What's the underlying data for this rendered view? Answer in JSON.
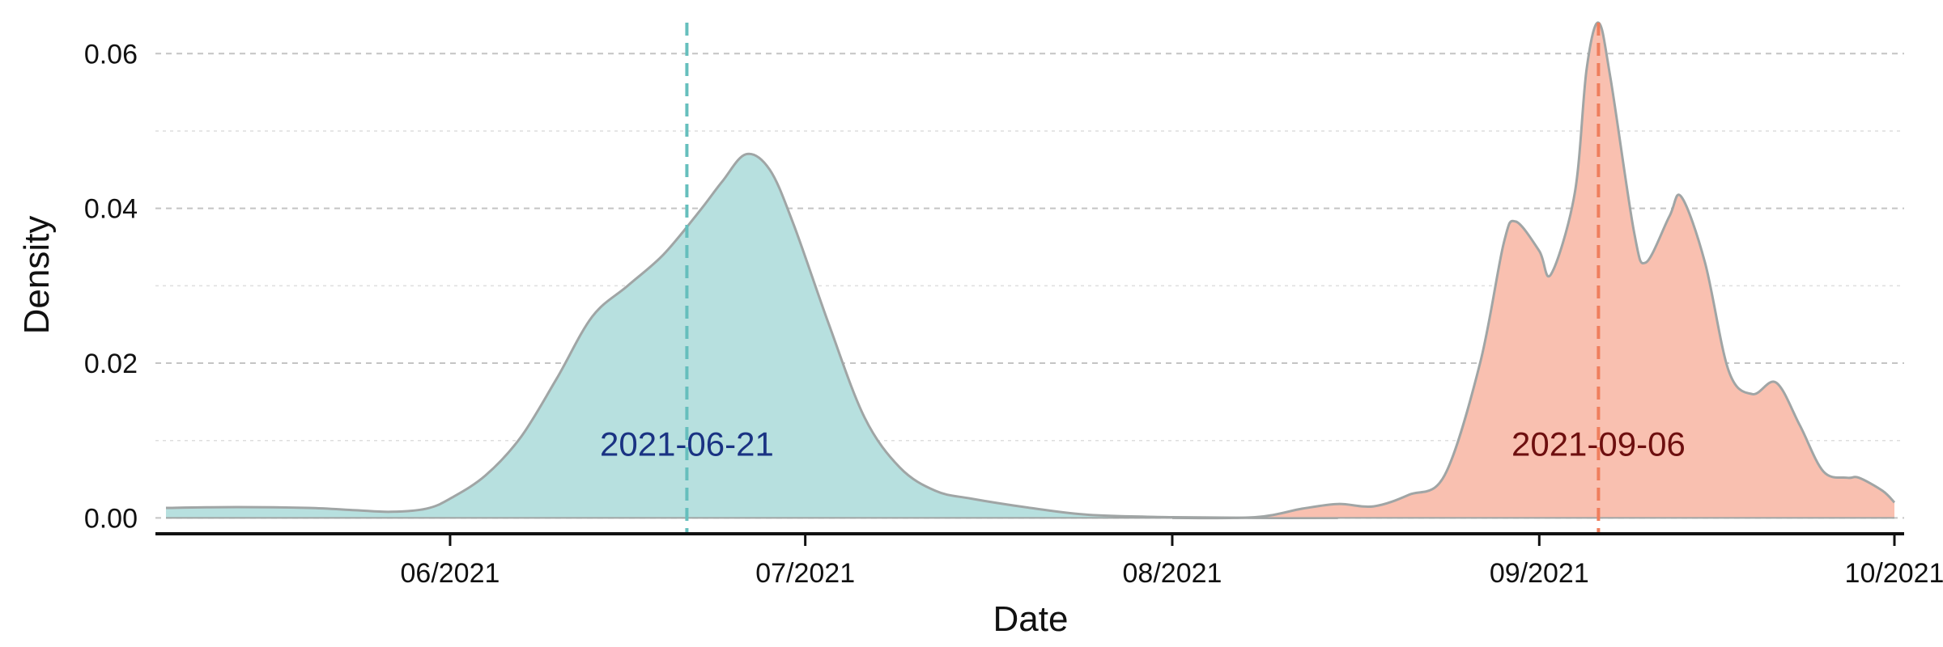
{
  "chart_data": {
    "type": "area",
    "xlabel": "Date",
    "ylabel": "Density",
    "xlim": [
      "2021-05-08",
      "2021-10-01"
    ],
    "ylim": [
      -0.001,
      0.064
    ],
    "x_ticks": [
      "2021-06-01",
      "2021-07-01",
      "2021-08-01",
      "2021-09-01",
      "2021-10-01"
    ],
    "x_tick_labels": [
      "06/2021",
      "07/2021",
      "08/2021",
      "09/2021",
      "10/2021"
    ],
    "y_ticks": [
      0.0,
      0.02,
      0.04,
      0.06
    ],
    "y_tick_labels": [
      "0.00",
      "0.02",
      "0.04",
      "0.06"
    ],
    "grid": "horizontal dashed",
    "series": [
      {
        "color": "#b7e0df",
        "points": [
          [
            "2021-05-08",
            0.0013
          ],
          [
            "2021-05-14",
            0.0014
          ],
          [
            "2021-05-20",
            0.0013
          ],
          [
            "2021-05-24",
            0.001
          ],
          [
            "2021-05-27",
            0.0008
          ],
          [
            "2021-05-30",
            0.0012
          ],
          [
            "2021-06-01",
            0.0025
          ],
          [
            "2021-06-04",
            0.0055
          ],
          [
            "2021-06-07",
            0.0105
          ],
          [
            "2021-06-10",
            0.018
          ],
          [
            "2021-06-13",
            0.026
          ],
          [
            "2021-06-16",
            0.03
          ],
          [
            "2021-06-19",
            0.034
          ],
          [
            "2021-06-22",
            0.0395
          ],
          [
            "2021-06-24",
            0.0435
          ],
          [
            "2021-06-26",
            0.047
          ],
          [
            "2021-06-28",
            0.045
          ],
          [
            "2021-06-30",
            0.038
          ],
          [
            "2021-07-03",
            0.025
          ],
          [
            "2021-07-06",
            0.013
          ],
          [
            "2021-07-09",
            0.0065
          ],
          [
            "2021-07-12",
            0.0035
          ],
          [
            "2021-07-15",
            0.0025
          ],
          [
            "2021-07-20",
            0.0013
          ],
          [
            "2021-07-25",
            0.0004
          ],
          [
            "2021-08-01",
            0.0001
          ],
          [
            "2021-08-08",
            0.0
          ],
          [
            "2021-08-15",
            0.0
          ]
        ]
      },
      {
        "color": "#f9c0b0",
        "points": [
          [
            "2021-08-01",
            0.0
          ],
          [
            "2021-08-08",
            0.0001
          ],
          [
            "2021-08-12",
            0.0012
          ],
          [
            "2021-08-15",
            0.0018
          ],
          [
            "2021-08-18",
            0.0015
          ],
          [
            "2021-08-21",
            0.003
          ],
          [
            "2021-08-24",
            0.0055
          ],
          [
            "2021-08-27",
            0.02
          ],
          [
            "2021-08-29",
            0.0355
          ],
          [
            "2021-08-30",
            0.0383
          ],
          [
            "2021-09-01",
            0.0345
          ],
          [
            "2021-09-02",
            0.0315
          ],
          [
            "2021-09-04",
            0.042
          ],
          [
            "2021-09-05",
            0.058
          ],
          [
            "2021-09-06",
            0.064
          ],
          [
            "2021-09-07",
            0.057
          ],
          [
            "2021-09-09",
            0.037
          ],
          [
            "2021-09-10",
            0.033
          ],
          [
            "2021-09-12",
            0.039
          ],
          [
            "2021-09-13",
            0.0415
          ],
          [
            "2021-09-15",
            0.033
          ],
          [
            "2021-09-17",
            0.019
          ],
          [
            "2021-09-19",
            0.016
          ],
          [
            "2021-09-21",
            0.0175
          ],
          [
            "2021-09-23",
            0.012
          ],
          [
            "2021-09-25",
            0.006
          ],
          [
            "2021-09-27",
            0.0052
          ],
          [
            "2021-09-28",
            0.0052
          ],
          [
            "2021-09-30",
            0.0035
          ],
          [
            "2021-10-01",
            0.002
          ]
        ]
      }
    ],
    "reference_lines": [
      {
        "date": "2021-06-21",
        "label": "2021-06-21",
        "line_color": "#66bfbd",
        "label_color": "#1a3383",
        "label_y": 0.0095
      },
      {
        "date": "2021-09-06",
        "label": "2021-09-06",
        "line_color": "#ef7e5d",
        "label_color": "#6e0f0f",
        "label_y": 0.0095
      }
    ]
  }
}
